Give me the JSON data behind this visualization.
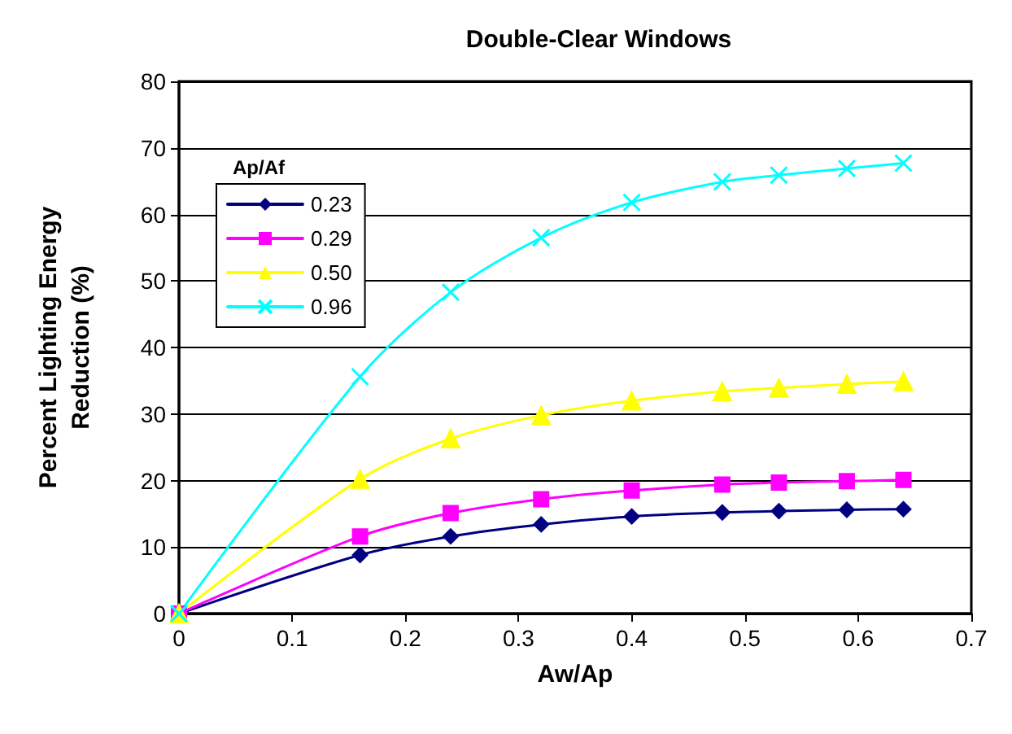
{
  "chart_data": {
    "type": "line",
    "title": "Double-Clear Windows",
    "xlabel": "Aw/Ap",
    "ylabel": "Percent Lighting Energy\nReduction (%)",
    "legend_title": "Ap/Af",
    "x": [
      0,
      0.16,
      0.24,
      0.32,
      0.4,
      0.48,
      0.53,
      0.59,
      0.64
    ],
    "series": [
      {
        "name": "0.23",
        "color": "#000080",
        "marker": "diamond",
        "values": [
          0,
          8.8,
          11.6,
          13.4,
          14.6,
          15.2,
          15.4,
          15.6,
          15.7
        ]
      },
      {
        "name": "0.29",
        "color": "#ff00ff",
        "marker": "square",
        "values": [
          0,
          11.6,
          15.1,
          17.2,
          18.5,
          19.4,
          19.7,
          19.9,
          20.1
        ]
      },
      {
        "name": "0.50",
        "color": "#ffff00",
        "marker": "triangle",
        "values": [
          0,
          20.2,
          26.3,
          29.8,
          32.0,
          33.4,
          33.9,
          34.5,
          34.9
        ]
      },
      {
        "name": "0.96",
        "color": "#00ffff",
        "marker": "cross",
        "values": [
          0,
          35.6,
          48.3,
          56.5,
          61.8,
          64.9,
          65.9,
          66.9,
          67.7
        ]
      }
    ],
    "xlim": [
      0,
      0.7
    ],
    "xticks": [
      0,
      0.1,
      0.2,
      0.3,
      0.4,
      0.5,
      0.6,
      0.7
    ],
    "ylim": [
      0,
      80
    ],
    "yticks": [
      0,
      10,
      20,
      30,
      40,
      50,
      60,
      70,
      80
    ],
    "grid": "y",
    "legend": "top left",
    "line_style": "solid"
  }
}
